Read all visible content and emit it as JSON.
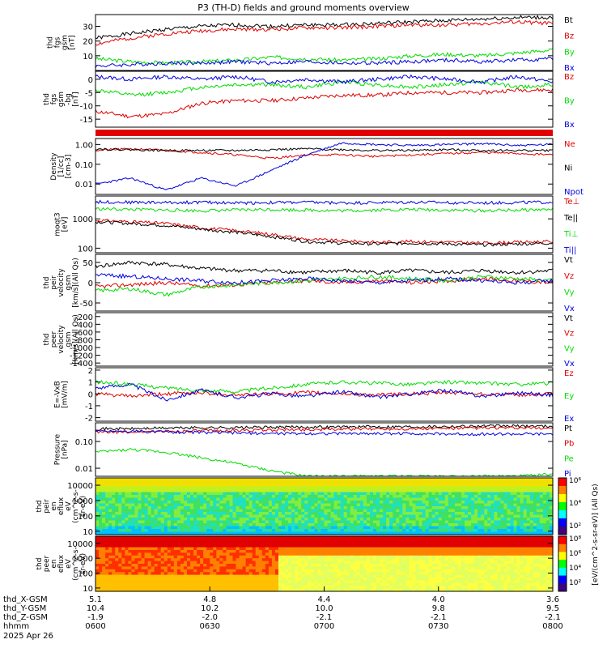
{
  "title": "P3 (TH-D) fields and ground moments overview",
  "colors": {
    "black": "#000000",
    "red": "#e00000",
    "green": "#00dd00",
    "blue": "#0000e0",
    "frame": "#000000"
  },
  "chart_data": [
    {
      "id": "fgs_mag",
      "type": "line",
      "ylabel": [
        "thd",
        "fgs",
        "gsm",
        "[nT]"
      ],
      "yticks": [
        10,
        20,
        30
      ],
      "ylim": [
        0,
        38
      ],
      "scale": "linear",
      "series": [
        {
          "name": "Bt",
          "color": "black",
          "values": [
            22,
            25,
            28,
            30,
            31,
            30,
            31,
            31,
            32,
            33,
            34,
            35,
            36,
            36
          ]
        },
        {
          "name": "Bz",
          "color": "red",
          "values": [
            18,
            22,
            25,
            27,
            28,
            28,
            29,
            29,
            30,
            31,
            31,
            32,
            33,
            32
          ]
        },
        {
          "name": "By",
          "color": "green",
          "values": [
            8,
            6,
            5,
            6,
            7,
            9,
            8,
            7,
            8,
            10,
            11,
            10,
            12,
            14
          ]
        },
        {
          "name": "Bx",
          "color": "blue",
          "values": [
            3,
            4,
            5,
            5,
            6,
            5,
            6,
            5,
            5,
            6,
            7,
            6,
            7,
            8
          ]
        }
      ]
    },
    {
      "id": "fgs_gse_b",
      "type": "line",
      "ylabel": [
        "thd",
        "fgs",
        "gsm",
        "-bg",
        "[nT]"
      ],
      "yticks": [
        -15,
        -10,
        -5,
        0
      ],
      "ylim": [
        -18,
        3
      ],
      "scale": "linear",
      "series": [
        {
          "name": "Bz",
          "color": "red",
          "values": [
            -12,
            -14,
            -13,
            -9,
            -8,
            -8,
            -7,
            -6,
            -6,
            -5,
            -5,
            -5,
            -4,
            -4
          ]
        },
        {
          "name": "By",
          "color": "green",
          "values": [
            -4,
            -6,
            -5,
            -3,
            -2,
            -2,
            -3,
            -1,
            -2,
            -3,
            -2,
            -1,
            -3,
            -2
          ]
        },
        {
          "name": "Bx",
          "color": "blue",
          "values": [
            1,
            0,
            1,
            0,
            1,
            -1,
            0,
            -1,
            0,
            1,
            0,
            -1,
            1,
            -1
          ]
        }
      ]
    },
    {
      "id": "density",
      "type": "line",
      "ylabel": [
        "Density",
        "[1/cc]",
        "[cm-3]"
      ],
      "yticks": [
        0.01,
        0.1,
        1
      ],
      "ytick_labels": [
        "0.01",
        "0.10",
        "1.00"
      ],
      "ylim": [
        0.003,
        2
      ],
      "scale": "log",
      "series": [
        {
          "name": "Ne",
          "color": "red",
          "values": [
            0.5,
            0.6,
            0.5,
            0.4,
            0.3,
            0.2,
            0.3,
            0.3,
            0.25,
            0.3,
            0.35,
            0.4,
            0.35,
            0.3
          ]
        },
        {
          "name": "Ni",
          "color": "black",
          "values": [
            0.6,
            0.55,
            0.5,
            0.5,
            0.5,
            0.55,
            0.6,
            0.55,
            0.5,
            0.5,
            0.55,
            0.5,
            0.5,
            0.5
          ]
        },
        {
          "name": "Npot",
          "color": "blue",
          "values": [
            0.01,
            0.02,
            0.005,
            0.02,
            0.008,
            0.05,
            0.3,
            1.2,
            1.0,
            0.9,
            1.0,
            1.1,
            0.9,
            1.0
          ]
        }
      ]
    },
    {
      "id": "temperature",
      "type": "line",
      "ylabel": [
        "moqt3",
        "[eV]"
      ],
      "yticks": [
        100,
        1000
      ],
      "ytick_labels": [
        "100",
        "1000"
      ],
      "ylim": [
        70,
        6000
      ],
      "scale": "log",
      "series": [
        {
          "name": "Te⊥",
          "color": "red",
          "values": [
            900,
            800,
            700,
            500,
            400,
            300,
            200,
            180,
            160,
            170,
            160,
            150,
            160,
            170
          ]
        },
        {
          "name": "Te||",
          "color": "black",
          "values": [
            800,
            700,
            600,
            450,
            350,
            250,
            170,
            150,
            140,
            150,
            140,
            130,
            140,
            150
          ]
        },
        {
          "name": "Ti⊥",
          "color": "green",
          "values": [
            2200,
            2100,
            2000,
            1900,
            2000,
            2100,
            2000,
            1900,
            2000,
            2100,
            2000,
            1900,
            2000,
            2100
          ]
        },
        {
          "name": "Ti||",
          "color": "blue",
          "values": [
            3800,
            3700,
            3600,
            3700,
            3500,
            3600,
            3700,
            3500,
            3600,
            3700,
            3600,
            3500,
            3600,
            3700
          ]
        }
      ]
    },
    {
      "id": "peir_velocity",
      "type": "line",
      "ylabel": [
        "thd",
        "peir",
        "velocity",
        "gsm",
        "[km/s](All Qs)"
      ],
      "yticks": [
        -50,
        0,
        50
      ],
      "ylim": [
        -70,
        70
      ],
      "scale": "linear",
      "series": [
        {
          "name": "Vt",
          "color": "black",
          "values": [
            40,
            50,
            45,
            35,
            30,
            30,
            25,
            30,
            25,
            30,
            25,
            30,
            25,
            30
          ]
        },
        {
          "name": "Vz",
          "color": "red",
          "values": [
            -10,
            -5,
            0,
            -8,
            -5,
            0,
            5,
            0,
            5,
            0,
            5,
            10,
            5,
            0
          ]
        },
        {
          "name": "Vy",
          "color": "green",
          "values": [
            -20,
            -15,
            -30,
            -10,
            -5,
            0,
            5,
            10,
            15,
            10,
            5,
            15,
            10,
            5
          ]
        },
        {
          "name": "Vx",
          "color": "blue",
          "values": [
            20,
            15,
            10,
            5,
            0,
            5,
            10,
            5,
            0,
            5,
            10,
            5,
            0,
            5
          ]
        }
      ]
    },
    {
      "id": "peer_velocity",
      "type": "line",
      "ylabel": [
        "thd",
        "peer",
        "velocity",
        "gsm",
        "[km/s](All Qs)"
      ],
      "yticks": [
        -1400,
        -1200,
        -1000,
        -800,
        -600,
        -400,
        -200
      ],
      "ylim": [
        -1480,
        -100
      ],
      "scale": "linear",
      "series": [
        {
          "name": "Vt",
          "color": "black",
          "values": []
        },
        {
          "name": "Vz",
          "color": "red",
          "values": []
        },
        {
          "name": "Vy",
          "color": "green",
          "values": []
        },
        {
          "name": "Vx",
          "color": "blue",
          "values": []
        }
      ]
    },
    {
      "id": "efield",
      "type": "line",
      "ylabel": [
        "E=-VxB",
        "[mV/m]"
      ],
      "yticks": [
        -2,
        -1,
        0,
        1,
        2
      ],
      "ylim": [
        -2.3,
        2.2
      ],
      "scale": "linear",
      "series": [
        {
          "name": "Ez",
          "color": "red",
          "values": [
            0,
            -0.2,
            0,
            0.1,
            -0.1,
            0,
            0.1,
            0,
            -0.1,
            0,
            0.1,
            0,
            -0.1,
            0
          ]
        },
        {
          "name": "Ey",
          "color": "green",
          "values": [
            1.0,
            0.8,
            0.5,
            0.3,
            0.2,
            0.5,
            0.8,
            1.0,
            0.9,
            0.8,
            1.0,
            0.9,
            0.8,
            0.9
          ]
        },
        {
          "name": "Ex",
          "color": "blue",
          "values": [
            0.5,
            0.8,
            -0.5,
            0.3,
            -0.3,
            0,
            -0.2,
            0.2,
            -0.3,
            0,
            0.3,
            -0.2,
            0.1,
            -0.1
          ]
        }
      ]
    },
    {
      "id": "pressure",
      "type": "line",
      "ylabel": [
        "Pressure",
        "[nPa]"
      ],
      "yticks": [
        0.01,
        0.1
      ],
      "ytick_labels": [
        "0.01",
        "0.10"
      ],
      "ylim": [
        0.005,
        0.5
      ],
      "scale": "log",
      "series": [
        {
          "name": "Pt",
          "color": "black",
          "values": [
            0.3,
            0.3,
            0.32,
            0.33,
            0.33,
            0.34,
            0.35,
            0.35,
            0.36,
            0.36,
            0.37,
            0.38,
            0.38,
            0.38
          ]
        },
        {
          "name": "Pb",
          "color": "red",
          "values": [
            0.22,
            0.23,
            0.24,
            0.25,
            0.26,
            0.27,
            0.28,
            0.29,
            0.3,
            0.3,
            0.31,
            0.32,
            0.32,
            0.32
          ]
        },
        {
          "name": "Pe",
          "color": "green",
          "values": [
            0.04,
            0.05,
            0.04,
            0.025,
            0.015,
            0.008,
            0.005,
            0.005,
            0.005,
            0.005,
            0.005,
            0.005,
            0.005,
            0.006
          ]
        },
        {
          "name": "Pi",
          "color": "blue",
          "values": [
            0.25,
            0.24,
            0.23,
            0.22,
            0.21,
            0.2,
            0.2,
            0.2,
            0.2,
            0.2,
            0.19,
            0.19,
            0.19,
            0.19
          ]
        }
      ]
    },
    {
      "id": "peir_eflux",
      "type": "heatmap",
      "ylabel": [
        "thd",
        "peir",
        "en",
        "eflux",
        "eV",
        "(cm^2-s-",
        "sr-eV)"
      ],
      "yticks": [
        10,
        100,
        1000,
        10000
      ],
      "ytick_labels": [
        "10",
        "100",
        "1000",
        "10000"
      ],
      "ylim": [
        6,
        30000
      ],
      "scale": "log"
    },
    {
      "id": "peer_eflux",
      "type": "heatmap",
      "ylabel": [
        "thd",
        "peer",
        "en",
        "eflux",
        "eV",
        "(cm^2-s-",
        "sr-eV)"
      ],
      "yticks": [
        10,
        100,
        1000,
        10000
      ],
      "ytick_labels": [
        "10",
        "100",
        "1000",
        "10000"
      ],
      "ylim": [
        6,
        30000
      ],
      "scale": "log"
    }
  ],
  "colorbars": [
    {
      "ticks": [
        "10²",
        "10⁴",
        "10⁶"
      ]
    },
    {
      "ticks": [
        "10²",
        "10⁴",
        "10⁶",
        "10⁸"
      ]
    }
  ],
  "colorbar_label": "[eV/(cm^2-s-sr-eV)] (All Qs)",
  "xaxis": {
    "rows": [
      {
        "label": "thd_X-GSM",
        "values": [
          "5.1",
          "4.8",
          "4.4",
          "4.0",
          "3.6"
        ]
      },
      {
        "label": "thd_Y-GSM",
        "values": [
          "10.4",
          "10.2",
          "10.0",
          "9.8",
          "9.5"
        ]
      },
      {
        "label": "thd_Z-GSM",
        "values": [
          "-1.9",
          "-2.0",
          "-2.1",
          "-2.1",
          "-2.1"
        ]
      },
      {
        "label": "hhmm",
        "values": [
          "0600",
          "0630",
          "0700",
          "0730",
          "0800"
        ]
      }
    ],
    "date": "2025 Apr 26"
  }
}
